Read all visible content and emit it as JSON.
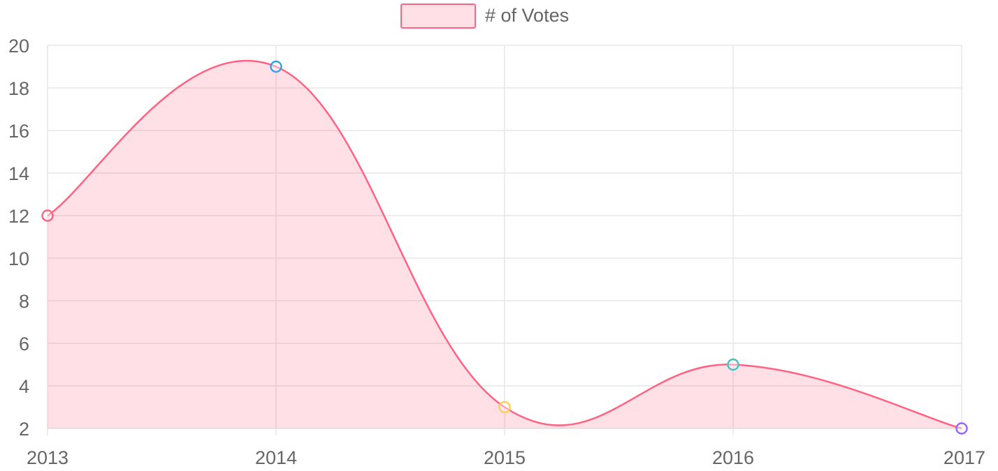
{
  "chart_data": {
    "type": "area",
    "x": [
      "2013",
      "2014",
      "2015",
      "2016",
      "2017"
    ],
    "series": [
      {
        "name": "# of Votes",
        "values": [
          12,
          19,
          3,
          5,
          2
        ],
        "line_color": "#ff6384",
        "fill_color": "rgba(255, 99, 132, 0.2)",
        "point_colors": [
          "#ff6384",
          "#36a2eb",
          "#ffce56",
          "#4bc0c0",
          "#9966ff"
        ]
      }
    ],
    "ylim": [
      2,
      20
    ],
    "y_ticks": [
      "20",
      "18",
      "16",
      "14",
      "12",
      "10",
      "8",
      "6",
      "4",
      "2"
    ],
    "grid": true,
    "legend_position": "top",
    "smooth": true
  },
  "colors": {
    "grid": "#e6e6e6",
    "axis_text": "#666666"
  }
}
